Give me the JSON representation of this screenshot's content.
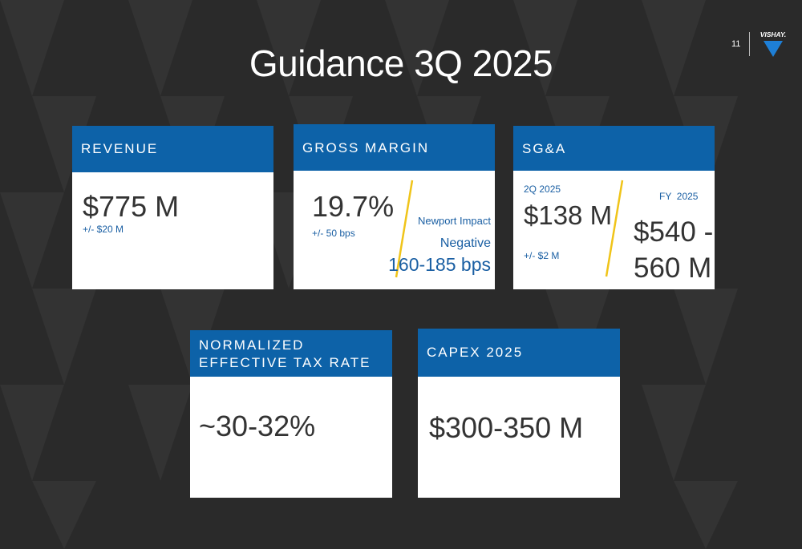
{
  "slide": {
    "title": "Guidance 3Q 2025",
    "page_number": "11",
    "logo_text": "VISHAY."
  },
  "colors": {
    "background": "#2b2b2b",
    "header_blue": "#0d62a8",
    "accent_yellow": "#f0c419",
    "text_blue": "#1a5fa3",
    "text_dark": "#333333"
  },
  "revenue": {
    "header": "REVENUE",
    "value": "$775 M",
    "range": "+/- $20 M"
  },
  "gross_margin": {
    "header": "GROSS MARGIN",
    "value": "19.7%",
    "range": "+/- 50 bps",
    "impact_label": "Newport Impact",
    "impact_direction": "Negative",
    "impact_value": "160-185 bps"
  },
  "sga": {
    "header": "SG&A",
    "quarter_label": "2Q 2025",
    "quarter_value": "$138 M",
    "quarter_range": "+/- $2 M",
    "fy_label": "FY  2025",
    "fy_value_line1": "$540 -",
    "fy_value_line2": "560 M"
  },
  "tax_rate": {
    "header_line1": "NORMALIZED",
    "header_line2": "EFFECTIVE TAX RATE",
    "value": "~30-32%"
  },
  "capex": {
    "header": "CAPEX 2025",
    "value": "$300-350 M"
  }
}
